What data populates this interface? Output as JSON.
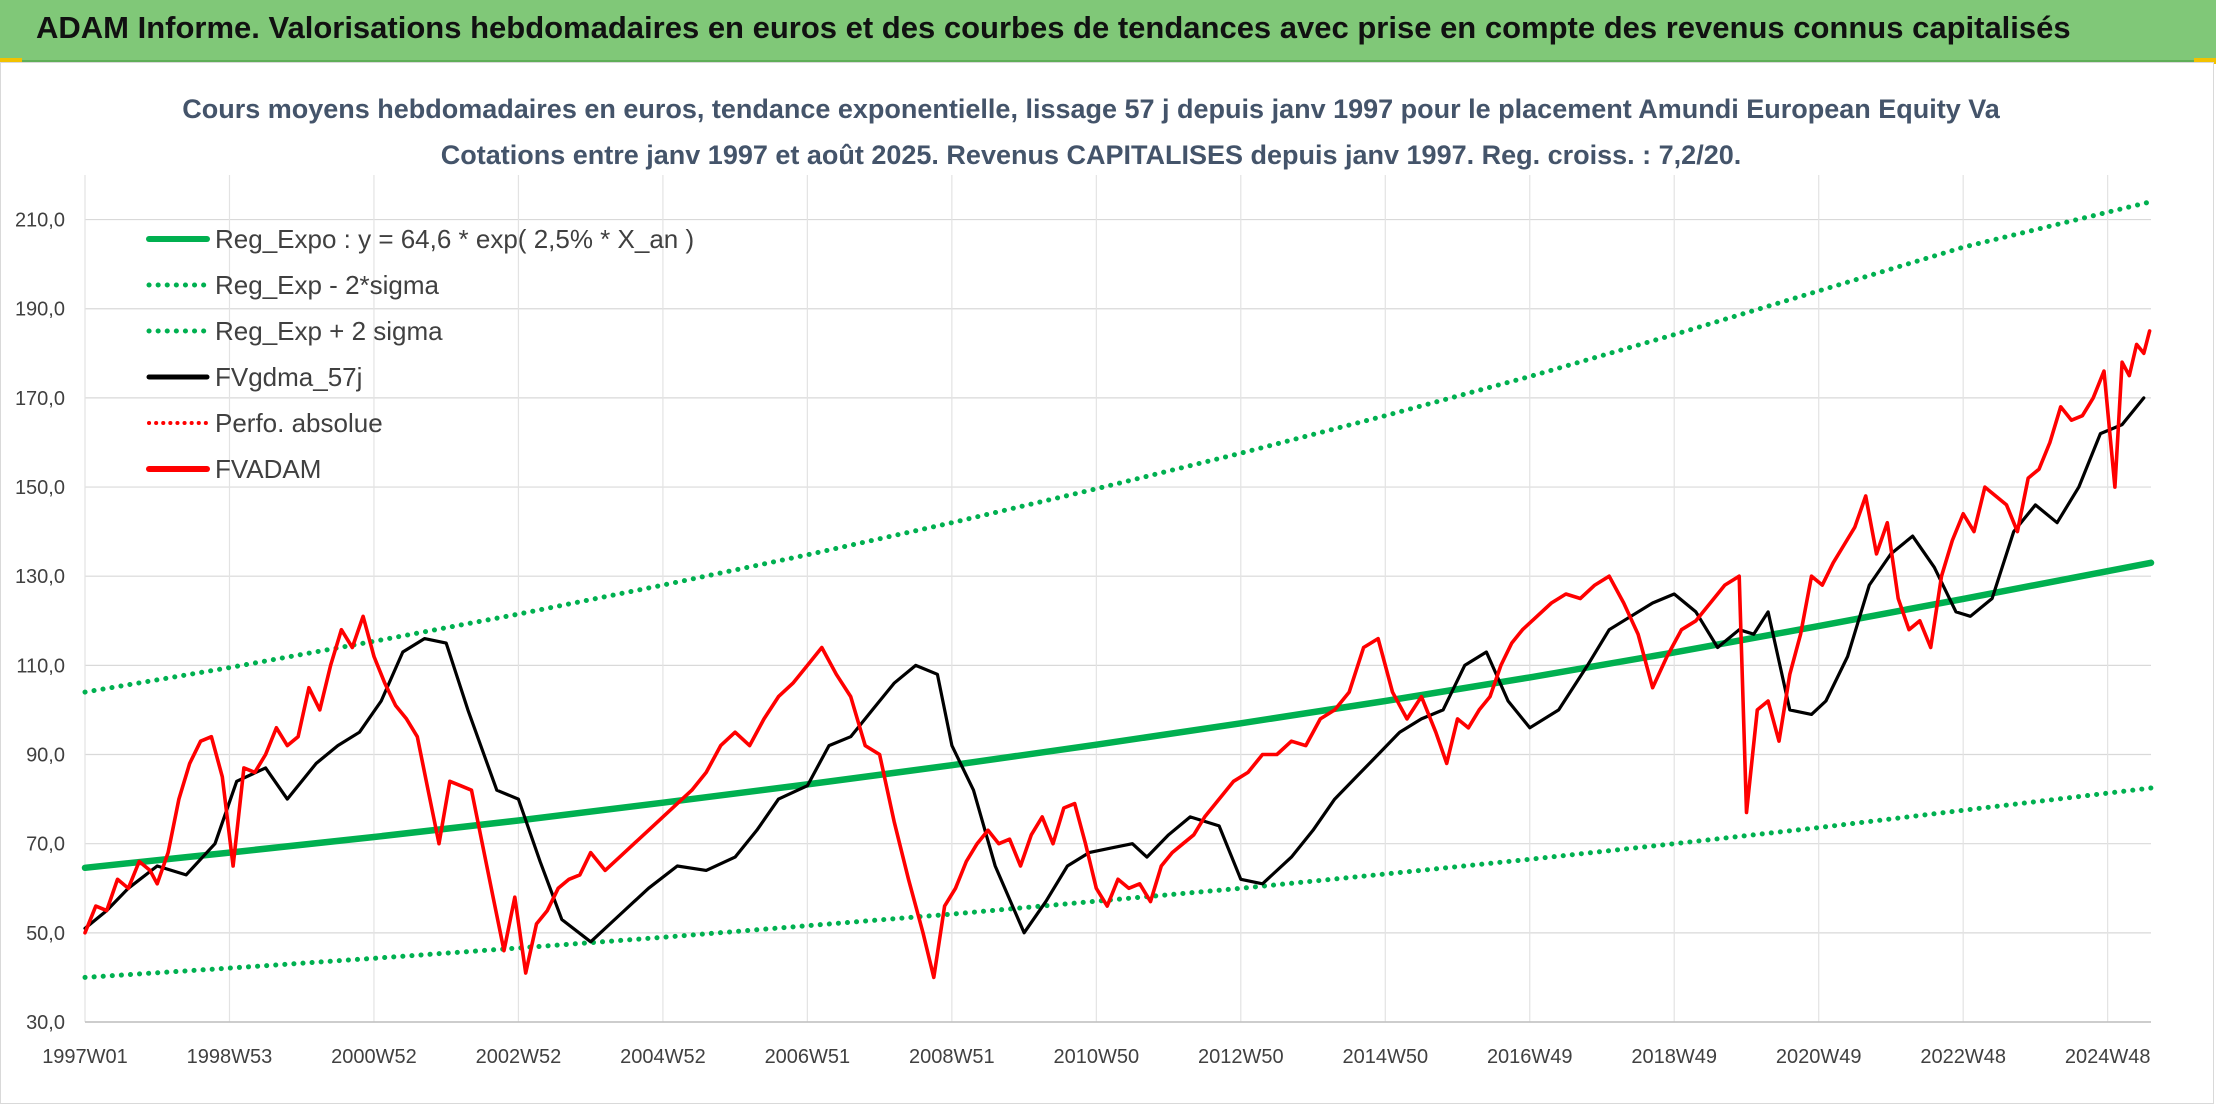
{
  "header": {
    "title": "ADAM Informe. Valorisations hebdomadaires en euros et des courbes de tendances avec prise en compte des revenus connus capitalisés"
  },
  "colors": {
    "banner": "#80c878",
    "regression": "#00b050",
    "smoothed": "#000000",
    "price": "#ff0000"
  },
  "chart_data": {
    "type": "line",
    "title_lines": [
      "Cours moyens hebdomadaires en euros, tendance exponentielle, lissage 57 j depuis janv 1997 pour le placement Amundi European Equity Va",
      "Cotations entre janv 1997 et août 2025. Revenus CAPITALISES depuis janv 1997. Reg. croiss. : 7,2/20."
    ],
    "xlabel": "",
    "ylabel": "",
    "x_range": [
      1997.0,
      2025.6
    ],
    "ylim": [
      30,
      220
    ],
    "y_ticks": [
      {
        "v": 30,
        "l": "30,0"
      },
      {
        "v": 50,
        "l": "50,0"
      },
      {
        "v": 70,
        "l": "70,0"
      },
      {
        "v": 90,
        "l": "90,0"
      },
      {
        "v": 110,
        "l": "110,0"
      },
      {
        "v": 130,
        "l": "130,0"
      },
      {
        "v": 150,
        "l": "150,0"
      },
      {
        "v": 170,
        "l": "170,0"
      },
      {
        "v": 190,
        "l": "190,0"
      },
      {
        "v": 210,
        "l": "210,0"
      }
    ],
    "x_ticks": [
      {
        "x": 1997.0,
        "l": "1997W01"
      },
      {
        "x": 1999.0,
        "l": "1998W53"
      },
      {
        "x": 2001.0,
        "l": "2000W52"
      },
      {
        "x": 2003.0,
        "l": "2002W52"
      },
      {
        "x": 2005.0,
        "l": "2004W52"
      },
      {
        "x": 2007.0,
        "l": "2006W51"
      },
      {
        "x": 2009.0,
        "l": "2008W51"
      },
      {
        "x": 2011.0,
        "l": "2010W50"
      },
      {
        "x": 2013.0,
        "l": "2012W50"
      },
      {
        "x": 2015.0,
        "l": "2014W50"
      },
      {
        "x": 2017.0,
        "l": "2016W49"
      },
      {
        "x": 2019.0,
        "l": "2018W49"
      },
      {
        "x": 2021.0,
        "l": "2020W49"
      },
      {
        "x": 2023.0,
        "l": "2022W48"
      },
      {
        "x": 2025.0,
        "l": "2024W48"
      }
    ],
    "grid": true,
    "legend_position": "top-left",
    "legend": [
      {
        "name": "Reg_Expo : y = 64,6 * exp( 2,5% *  X_an )",
        "style": "solid-green"
      },
      {
        "name": "Reg_Exp - 2*sigma",
        "style": "dotted-green"
      },
      {
        "name": "Reg_Exp + 2 sigma",
        "style": "dotted-green"
      },
      {
        "name": "FVgdma_57j",
        "style": "solid-black"
      },
      {
        "name": "Perfo. absolue",
        "style": "dotted-red"
      },
      {
        "name": "FVADAM",
        "style": "solid-red"
      }
    ],
    "series": [
      {
        "name": "Reg_Expo : y = 64,6 * exp( 2,5% *  X_an )",
        "color": "#00b050",
        "dash": "solid",
        "x": [
          1997.0,
          1999.0,
          2001.0,
          2003.0,
          2005.0,
          2007.0,
          2009.0,
          2011.0,
          2013.0,
          2015.0,
          2017.0,
          2019.0,
          2021.0,
          2023.0,
          2025.6
        ],
        "y": [
          64.6,
          68.0,
          71.5,
          75.2,
          79.2,
          83.3,
          87.6,
          92.2,
          97.0,
          102.0,
          107.3,
          112.9,
          118.8,
          124.9,
          133.0
        ]
      },
      {
        "name": "Reg_Exp + 2 sigma",
        "color": "#00b050",
        "dash": "dotted",
        "x": [
          1997.0,
          1999.0,
          2001.0,
          2003.0,
          2005.0,
          2007.0,
          2009.0,
          2011.0,
          2013.0,
          2015.0,
          2017.0,
          2019.0,
          2021.0,
          2023.0,
          2025.6
        ],
        "y": [
          104.0,
          109.5,
          115.4,
          121.5,
          128.0,
          134.8,
          142.0,
          149.6,
          157.6,
          166.0,
          174.8,
          184.2,
          194.0,
          203.8,
          214.0
        ]
      },
      {
        "name": "Reg_Exp - 2*sigma",
        "color": "#00b050",
        "dash": "dotted",
        "x": [
          1997.0,
          1999.0,
          2001.0,
          2003.0,
          2005.0,
          2007.0,
          2009.0,
          2011.0,
          2013.0,
          2015.0,
          2017.0,
          2019.0,
          2021.0,
          2023.0,
          2025.6
        ],
        "y": [
          40.0,
          42.1,
          44.3,
          46.6,
          49.0,
          51.6,
          54.2,
          57.1,
          60.0,
          63.2,
          66.5,
          70.0,
          73.6,
          77.5,
          82.5
        ]
      },
      {
        "name": "FVgdma_57j",
        "color": "#000000",
        "dash": "solid",
        "x": [
          1997.0,
          1997.3,
          1997.6,
          1998.0,
          1998.4,
          1998.8,
          1999.1,
          1999.5,
          1999.8,
          2000.2,
          2000.5,
          2000.8,
          2001.1,
          2001.4,
          2001.7,
          2002.0,
          2002.3,
          2002.7,
          2003.0,
          2003.3,
          2003.6,
          2004.0,
          2004.4,
          2004.8,
          2005.2,
          2005.6,
          2006.0,
          2006.3,
          2006.6,
          2007.0,
          2007.3,
          2007.6,
          2007.9,
          2008.2,
          2008.5,
          2008.8,
          2009.0,
          2009.3,
          2009.6,
          2010.0,
          2010.3,
          2010.6,
          2010.9,
          2011.2,
          2011.5,
          2011.7,
          2012.0,
          2012.3,
          2012.7,
          2013.0,
          2013.3,
          2013.7,
          2014.0,
          2014.3,
          2014.6,
          2014.9,
          2015.2,
          2015.5,
          2015.8,
          2016.1,
          2016.4,
          2016.7,
          2017.0,
          2017.4,
          2017.8,
          2018.1,
          2018.4,
          2018.7,
          2019.0,
          2019.3,
          2019.6,
          2019.9,
          2020.1,
          2020.3,
          2020.6,
          2020.9,
          2021.1,
          2021.4,
          2021.7,
          2022.0,
          2022.3,
          2022.6,
          2022.9,
          2023.1,
          2023.4,
          2023.7,
          2024.0,
          2024.3,
          2024.6,
          2024.9,
          2025.2,
          2025.5
        ],
        "y": [
          51,
          55,
          60,
          65,
          63,
          70,
          84,
          87,
          80,
          88,
          92,
          95,
          102,
          113,
          116,
          115,
          100,
          82,
          80,
          66,
          53,
          48,
          54,
          60,
          65,
          64,
          67,
          73,
          80,
          83,
          92,
          94,
          100,
          106,
          110,
          108,
          92,
          82,
          65,
          50,
          57,
          65,
          68,
          69,
          70,
          67,
          72,
          76,
          74,
          62,
          61,
          67,
          73,
          80,
          85,
          90,
          95,
          98,
          100,
          110,
          113,
          102,
          96,
          100,
          110,
          118,
          121,
          124,
          126,
          122,
          114,
          118,
          117,
          122,
          100,
          99,
          102,
          112,
          128,
          135,
          139,
          132,
          122,
          121,
          125,
          140,
          146,
          142,
          150,
          162,
          164,
          170
        ]
      },
      {
        "name": "FVADAM",
        "color": "#ff0000",
        "dash": "solid",
        "x": [
          1997.0,
          1997.15,
          1997.3,
          1997.45,
          1997.6,
          1997.75,
          1997.9,
          1998.0,
          1998.15,
          1998.3,
          1998.45,
          1998.6,
          1998.75,
          1998.9,
          1999.05,
          1999.2,
          1999.35,
          1999.5,
          1999.65,
          1999.8,
          1999.95,
          2000.1,
          2000.25,
          2000.4,
          2000.55,
          2000.7,
          2000.85,
          2001.0,
          2001.15,
          2001.3,
          2001.45,
          2001.6,
          2001.75,
          2001.9,
          2002.05,
          2002.2,
          2002.35,
          2002.5,
          2002.65,
          2002.8,
          2002.95,
          2003.1,
          2003.25,
          2003.4,
          2003.55,
          2003.7,
          2003.85,
          2004.0,
          2004.2,
          2004.4,
          2004.6,
          2004.8,
          2005.0,
          2005.2,
          2005.4,
          2005.6,
          2005.8,
          2006.0,
          2006.2,
          2006.4,
          2006.6,
          2006.8,
          2007.0,
          2007.2,
          2007.4,
          2007.6,
          2007.8,
          2008.0,
          2008.2,
          2008.4,
          2008.6,
          2008.75,
          2008.9,
          2009.05,
          2009.2,
          2009.35,
          2009.5,
          2009.65,
          2009.8,
          2009.95,
          2010.1,
          2010.25,
          2010.4,
          2010.55,
          2010.7,
          2010.85,
          2011.0,
          2011.15,
          2011.3,
          2011.45,
          2011.6,
          2011.75,
          2011.9,
          2012.05,
          2012.2,
          2012.35,
          2012.5,
          2012.7,
          2012.9,
          2013.1,
          2013.3,
          2013.5,
          2013.7,
          2013.9,
          2014.1,
          2014.3,
          2014.5,
          2014.7,
          2014.9,
          2015.1,
          2015.3,
          2015.5,
          2015.7,
          2015.85,
          2016.0,
          2016.15,
          2016.3,
          2016.45,
          2016.6,
          2016.75,
          2016.9,
          2017.1,
          2017.3,
          2017.5,
          2017.7,
          2017.9,
          2018.1,
          2018.3,
          2018.5,
          2018.7,
          2018.9,
          2019.1,
          2019.3,
          2019.5,
          2019.7,
          2019.9,
          2020.0,
          2020.15,
          2020.3,
          2020.45,
          2020.6,
          2020.75,
          2020.9,
          2021.05,
          2021.2,
          2021.35,
          2021.5,
          2021.65,
          2021.8,
          2021.95,
          2022.1,
          2022.25,
          2022.4,
          2022.55,
          2022.7,
          2022.85,
          2023.0,
          2023.15,
          2023.3,
          2023.45,
          2023.6,
          2023.75,
          2023.9,
          2024.05,
          2024.2,
          2024.35,
          2024.5,
          2024.65,
          2024.8,
          2024.95,
          2025.1,
          2025.2,
          2025.3,
          2025.4,
          2025.5,
          2025.58
        ],
        "y": [
          50,
          56,
          55,
          62,
          60,
          66,
          64,
          61,
          68,
          80,
          88,
          93,
          94,
          85,
          65,
          87,
          86,
          90,
          96,
          92,
          94,
          105,
          100,
          110,
          118,
          114,
          121,
          112,
          106,
          101,
          98,
          94,
          82,
          70,
          84,
          83,
          82,
          70,
          58,
          46,
          58,
          41,
          52,
          55,
          60,
          62,
          63,
          68,
          64,
          67,
          70,
          73,
          76,
          79,
          82,
          86,
          92,
          95,
          92,
          98,
          103,
          106,
          110,
          114,
          108,
          103,
          92,
          90,
          75,
          62,
          50,
          40,
          56,
          60,
          66,
          70,
          73,
          70,
          71,
          65,
          72,
          76,
          70,
          78,
          79,
          70,
          60,
          56,
          62,
          60,
          61,
          57,
          65,
          68,
          70,
          72,
          76,
          80,
          84,
          86,
          90,
          90,
          93,
          92,
          98,
          100,
          104,
          114,
          116,
          104,
          98,
          103,
          95,
          88,
          98,
          96,
          100,
          103,
          110,
          115,
          118,
          121,
          124,
          126,
          125,
          128,
          130,
          124,
          117,
          105,
          112,
          118,
          120,
          124,
          128,
          130,
          77,
          100,
          102,
          93,
          108,
          117,
          130,
          128,
          133,
          137,
          141,
          148,
          135,
          142,
          125,
          118,
          120,
          114,
          130,
          138,
          144,
          140,
          150,
          148,
          146,
          140,
          152,
          154,
          160,
          168,
          165,
          166,
          170,
          176,
          150,
          178,
          175,
          182,
          180,
          185
        ]
      }
    ]
  }
}
